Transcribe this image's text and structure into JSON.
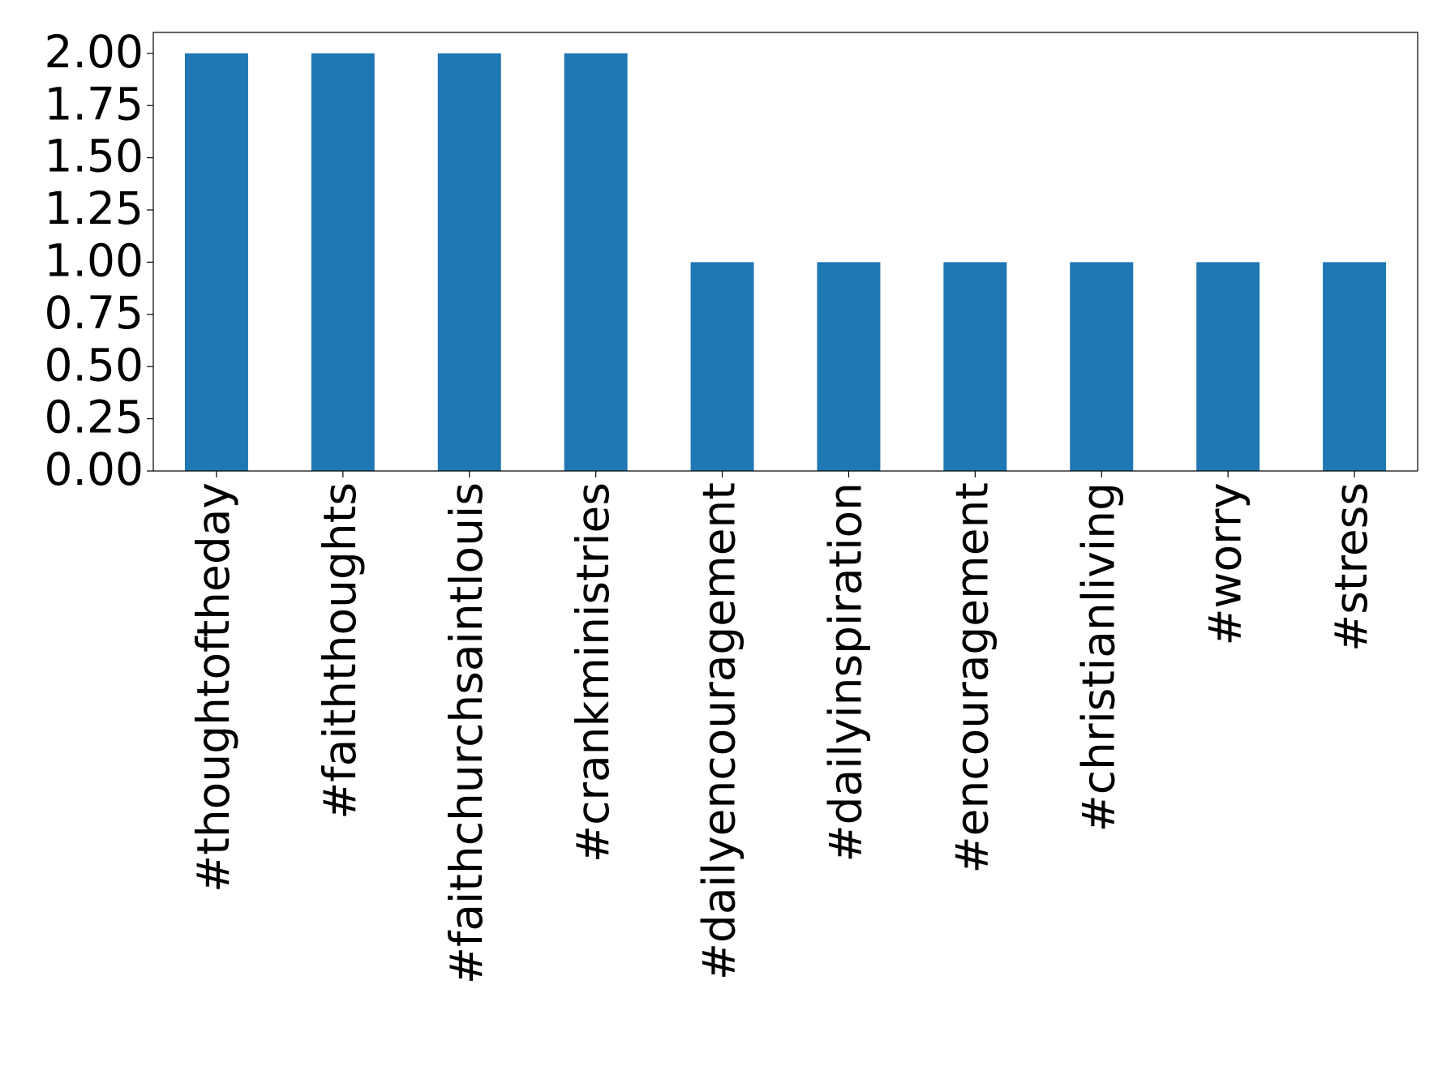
{
  "chart_data": {
    "type": "bar",
    "categories": [
      "#thoughtoftheday",
      "#faiththoughts",
      "#faithchurchsaintlouis",
      "#crankministries",
      "#dailyencouragement",
      "#dailyinspiration",
      "#encouragement",
      "#christianliving",
      "#worry",
      "#stress"
    ],
    "values": [
      2,
      2,
      2,
      2,
      1,
      1,
      1,
      1,
      1,
      1
    ],
    "color": "#1f77b4",
    "ylim": [
      0,
      2.1
    ],
    "yticks": [
      {
        "value": 0,
        "label": "0.00"
      },
      {
        "value": 0.25,
        "label": "0.25"
      },
      {
        "value": 0.5,
        "label": "0.50"
      },
      {
        "value": 0.75,
        "label": "0.75"
      },
      {
        "value": 1,
        "label": "1.00"
      },
      {
        "value": 1.25,
        "label": "1.25"
      },
      {
        "value": 1.5,
        "label": "1.50"
      },
      {
        "value": 1.75,
        "label": "1.75"
      },
      {
        "value": 2,
        "label": "2.00"
      }
    ],
    "grid": false
  }
}
